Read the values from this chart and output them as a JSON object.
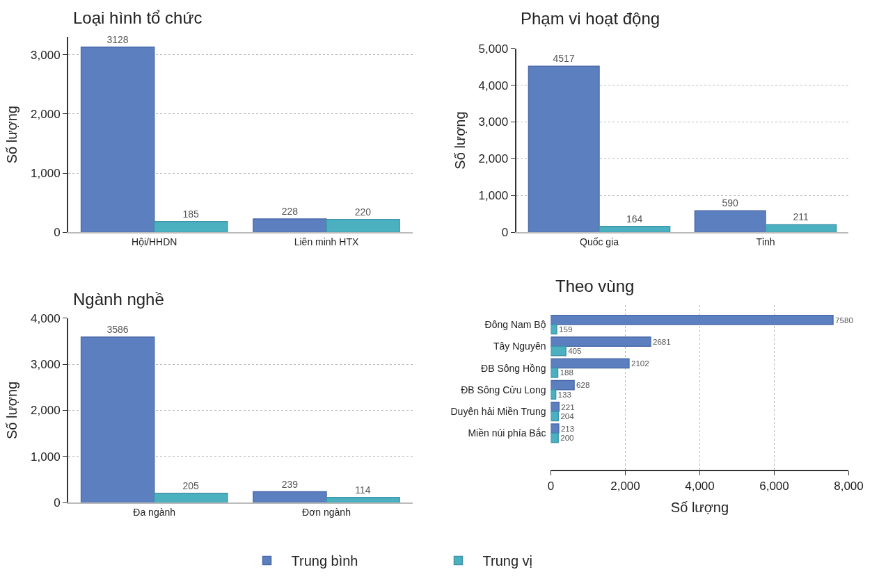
{
  "chart_data": [
    {
      "type": "bar",
      "title": "Loại hình tổ chức",
      "ylabel": "Số lượng",
      "categories": [
        "Hội/HHDN",
        "Liên minh HTX"
      ],
      "series": [
        {
          "name": "Trung bình",
          "color": "#5b7fbf",
          "values": [
            3128,
            228
          ]
        },
        {
          "name": "Trung vị",
          "color": "#4bb0bf",
          "values": [
            185,
            220
          ]
        }
      ],
      "ylim": [
        0,
        3300
      ],
      "yticks": [
        {
          "value": 0,
          "label": "0"
        },
        {
          "value": 1000,
          "label": "1,000"
        },
        {
          "value": 2000,
          "label": "2,000"
        },
        {
          "value": 3000,
          "label": "3,000"
        }
      ],
      "grid": "y",
      "data_labels": true,
      "legend": "bottom"
    },
    {
      "type": "bar",
      "title": "Phạm vi hoạt động",
      "ylabel": "Số lượng",
      "categories": [
        "Quốc gia",
        "Tỉnh"
      ],
      "series": [
        {
          "color": "#5b7fbf",
          "values": [
            4517,
            590
          ]
        },
        {
          "color": "#4bb0bf",
          "values": [
            164,
            211
          ]
        }
      ],
      "ylim": [
        0,
        5000
      ],
      "yticks": [
        {
          "value": 0,
          "label": "0"
        },
        {
          "value": 1000,
          "label": "1,000"
        },
        {
          "value": 2000,
          "label": "2,000"
        },
        {
          "value": 3000,
          "label": "3,000"
        },
        {
          "value": 4000,
          "label": "4,000"
        },
        {
          "value": 5000,
          "label": "5,000"
        }
      ],
      "grid": "y",
      "data_labels": true
    },
    {
      "type": "bar",
      "title": "Ngành nghề",
      "ylabel": "Số lượng",
      "categories": [
        "Đa ngành",
        "Đơn ngành"
      ],
      "series": [
        {
          "color": "#5b7fbf",
          "values": [
            3586,
            239
          ]
        },
        {
          "color": "#4bb0bf",
          "values": [
            205,
            114
          ]
        }
      ],
      "ylim": [
        0,
        4000
      ],
      "yticks": [
        {
          "value": 0,
          "label": "0"
        },
        {
          "value": 1000,
          "label": "1,000"
        },
        {
          "value": 2000,
          "label": "2,000"
        },
        {
          "value": 3000,
          "label": "3,000"
        },
        {
          "value": 4000,
          "label": "4,000"
        }
      ],
      "grid": "y",
      "data_labels": true
    },
    {
      "type": "bar",
      "orientation": "horizontal",
      "title": "Theo vùng",
      "xlabel": "Số lượng",
      "categories": [
        "Đông Nam Bộ",
        "Tây Nguyên",
        "ĐB Sông Hồng",
        "ĐB Sông Cửu Long",
        "Duyên hải Miền Trung",
        "Miền núi phía Bắc"
      ],
      "series": [
        {
          "color": "#5b7fbf",
          "values": [
            7580,
            2681,
            2102,
            628,
            221,
            213
          ]
        },
        {
          "color": "#4bb0bf",
          "values": [
            159,
            405,
            188,
            133,
            204,
            200
          ]
        }
      ],
      "xlim": [
        0,
        8000
      ],
      "xticks": [
        {
          "value": 0,
          "label": "0"
        },
        {
          "value": 2000,
          "label": "2,000"
        },
        {
          "value": 4000,
          "label": "4,000"
        },
        {
          "value": 6000,
          "label": "6,000"
        },
        {
          "value": 8000,
          "label": "8,000"
        }
      ],
      "grid": "x",
      "data_labels": true
    }
  ]
}
